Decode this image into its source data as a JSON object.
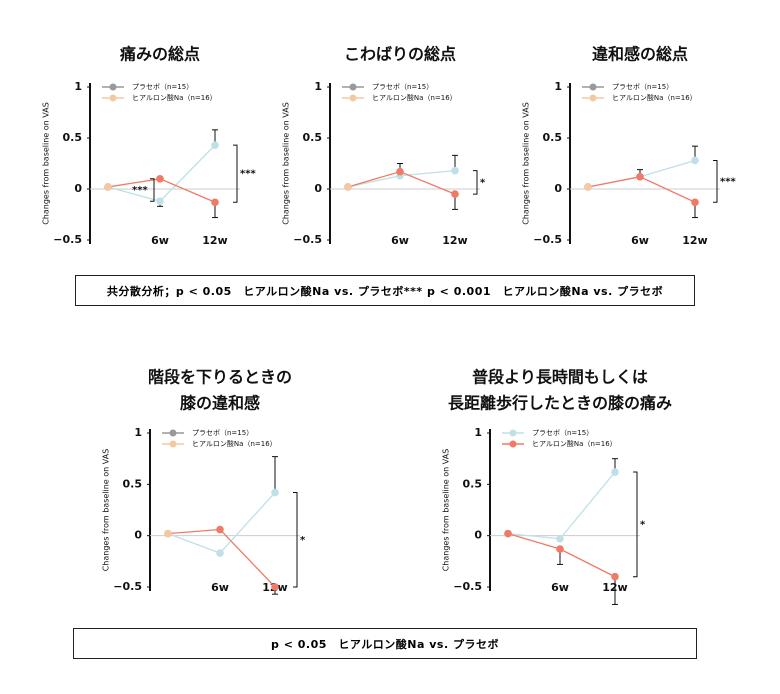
{
  "chart_data": [
    {
      "type": "line",
      "title": "痛みの総点",
      "ylabel": "Changes from baseline on VAS",
      "categories": [
        null,
        "6w",
        "12w"
      ],
      "ylim": [
        -0.5,
        1
      ],
      "yticks": [
        1,
        0.5,
        0,
        {
          "value": -0.5,
          "label": "−0.5"
        }
      ],
      "series": [
        {
          "name": "プラセボ（n=15）",
          "color": "#999999",
          "line_color": "#bfe0e8",
          "values": [
            0.02,
            -0.12,
            0.43
          ],
          "errors": [
            null,
            0.05,
            0.15
          ]
        },
        {
          "name": "ヒアルロン酸Na（n=16）",
          "color": "#f5c9a0",
          "line_color": "#f07a66",
          "values": [
            0.02,
            0.1,
            -0.13
          ],
          "errors": [
            null,
            null,
            0.15
          ]
        }
      ],
      "significance": [
        null,
        "***",
        "***"
      ]
    },
    {
      "type": "line",
      "title": "こわばりの総点",
      "ylabel": "Changes from baseline on VAS",
      "categories": [
        null,
        "6w",
        "12w"
      ],
      "ylim": [
        -0.5,
        1
      ],
      "yticks": [
        1,
        0.5,
        0,
        {
          "value": -0.5,
          "label": "−0.5"
        }
      ],
      "series": [
        {
          "name": "プラセボ（n=15）",
          "color": "#999999",
          "line_color": "#bfe0e8",
          "values": [
            0.02,
            0.13,
            0.18
          ],
          "errors": [
            null,
            null,
            0.15
          ]
        },
        {
          "name": "ヒアルロン酸Na（n=16）",
          "color": "#f5c9a0",
          "line_color": "#f07a66",
          "values": [
            0.02,
            0.17,
            -0.05
          ],
          "errors": [
            null,
            0.08,
            0.15
          ]
        }
      ],
      "significance": [
        null,
        null,
        "*"
      ]
    },
    {
      "type": "line",
      "title": "違和感の総点",
      "ylabel": "Changes from baseline on VAS",
      "categories": [
        null,
        "6w",
        "12w"
      ],
      "ylim": [
        -0.5,
        1
      ],
      "yticks": [
        1,
        0.5,
        0,
        {
          "value": -0.5,
          "label": "−0.5"
        }
      ],
      "series": [
        {
          "name": "プラセボ（n=15）",
          "color": "#999999",
          "line_color": "#bfe0e8",
          "values": [
            0.02,
            0.12,
            0.28
          ],
          "errors": [
            null,
            0.07,
            0.14
          ]
        },
        {
          "name": "ヒアルロン酸Na（n=16）",
          "color": "#f5c9a0",
          "line_color": "#f07a66",
          "values": [
            0.02,
            0.12,
            -0.13
          ],
          "errors": [
            null,
            null,
            0.15
          ]
        }
      ],
      "significance": [
        null,
        null,
        "***"
      ]
    },
    {
      "type": "line",
      "title": [
        "階段を下りるときの",
        "膝の違和感"
      ],
      "ylabel": "Changes from baseline on VAS",
      "categories": [
        null,
        "6w",
        "12w"
      ],
      "ylim": [
        -0.5,
        1
      ],
      "yticks": [
        1,
        0.5,
        0,
        {
          "value": -0.5,
          "label": "−0.5"
        }
      ],
      "series": [
        {
          "name": "プラセボ（n=15）",
          "color": "#999999",
          "line_color": "#bfe0e8",
          "values": [
            0.02,
            -0.17,
            0.42
          ],
          "errors": [
            null,
            null,
            0.35
          ]
        },
        {
          "name": "ヒアルロン酸Na（n=16）",
          "color": "#f5c9a0",
          "line_color": "#f07a66",
          "values": [
            0.02,
            0.06,
            -0.5
          ],
          "errors": [
            null,
            null,
            0.07
          ]
        }
      ],
      "significance": [
        null,
        null,
        "*"
      ]
    },
    {
      "type": "line",
      "title": [
        "普段より長時間もしくは",
        "長距離歩行したときの膝の痛み"
      ],
      "ylabel": "Changes from baseline on VAS",
      "categories": [
        null,
        "6w",
        "12w"
      ],
      "ylim": [
        -0.5,
        1
      ],
      "yticks": [
        1,
        0.5,
        0,
        {
          "value": -0.5,
          "label": "−0.5"
        }
      ],
      "series": [
        {
          "name": "プラセボ（n=15）",
          "color": "#bfe0e8",
          "line_color": "#bfe0e8",
          "values": [
            0.02,
            -0.03,
            0.62
          ],
          "errors": [
            null,
            null,
            0.13
          ]
        },
        {
          "name": "ヒアルロン酸Na（n=16）",
          "color": "#f07a66",
          "line_color": "#f07a66",
          "values": [
            0.02,
            -0.13,
            -0.4
          ],
          "errors": [
            null,
            0.15,
            0.27
          ]
        }
      ],
      "significance": [
        null,
        null,
        "*"
      ]
    }
  ],
  "notes": [
    "共分散分析；p < 0.05　ヒアルロン酸Na vs. プラセボ*** p < 0.001　ヒアルロン酸Na vs. プラセボ",
    "p < 0.05　ヒアルロン酸Na vs. プラセボ"
  ]
}
